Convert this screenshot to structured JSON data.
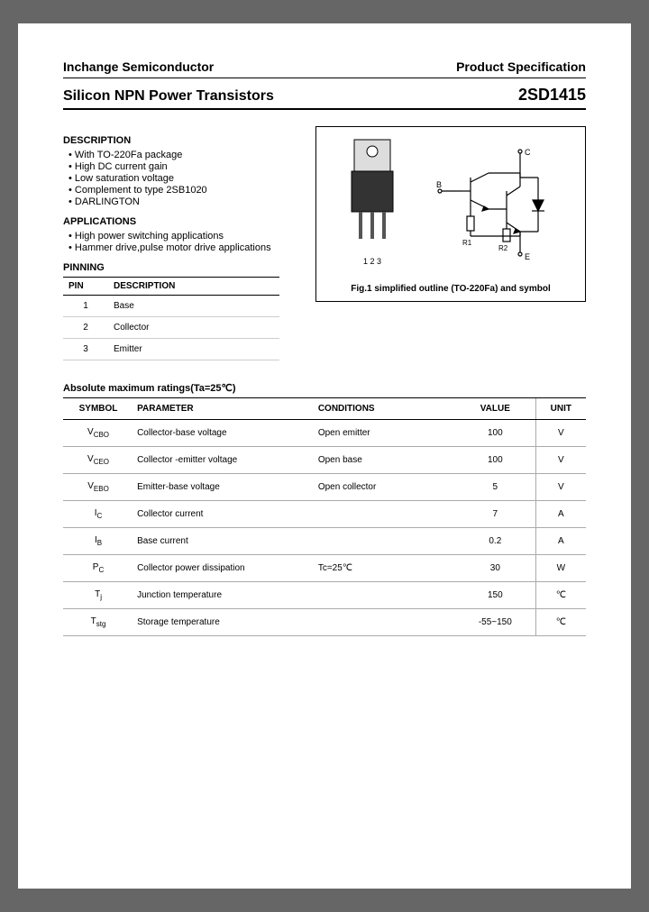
{
  "header": {
    "company": "Inchange Semiconductor",
    "doctype": "Product Specification"
  },
  "title": {
    "left": "Silicon NPN Power Transistors",
    "part": "2SD1415"
  },
  "description": {
    "heading": "DESCRIPTION",
    "items": [
      "With TO-220Fa package",
      "High DC current gain",
      "Low saturation voltage",
      "Complement to type 2SB1020",
      "DARLINGTON"
    ]
  },
  "applications": {
    "heading": "APPLICATIONS",
    "items": [
      "High power switching applications",
      "Hammer drive,pulse motor drive applications"
    ]
  },
  "pinning": {
    "heading": "PINNING",
    "columns": [
      "PIN",
      "DESCRIPTION"
    ],
    "rows": [
      [
        "1",
        "Base"
      ],
      [
        "2",
        "Collector"
      ],
      [
        "3",
        "Emitter"
      ]
    ]
  },
  "figure": {
    "pin_labels": "1 2 3",
    "sym_labels": {
      "B": "B",
      "C": "C",
      "E": "E",
      "R1": "R1",
      "R2": "R2"
    },
    "caption": "Fig.1 simplified outline (TO-220Fa) and symbol"
  },
  "ratings": {
    "heading": "Absolute maximum ratings(Ta=25℃)",
    "columns": [
      "SYMBOL",
      "PARAMETER",
      "CONDITIONS",
      "VALUE",
      "UNIT"
    ],
    "rows": [
      {
        "sym": "V",
        "sub": "CBO",
        "par": "Collector-base voltage",
        "con": "Open emitter",
        "val": "100",
        "uni": "V"
      },
      {
        "sym": "V",
        "sub": "CEO",
        "par": "Collector -emitter voltage",
        "con": "Open base",
        "val": "100",
        "uni": "V"
      },
      {
        "sym": "V",
        "sub": "EBO",
        "par": "Emitter-base voltage",
        "con": "Open collector",
        "val": "5",
        "uni": "V"
      },
      {
        "sym": "I",
        "sub": "C",
        "par": "Collector current",
        "con": "",
        "val": "7",
        "uni": "A"
      },
      {
        "sym": "I",
        "sub": "B",
        "par": "Base current",
        "con": "",
        "val": "0.2",
        "uni": "A"
      },
      {
        "sym": "P",
        "sub": "C",
        "par": "Collector power dissipation",
        "con": "Tc=25℃",
        "val": "30",
        "uni": "W"
      },
      {
        "sym": "T",
        "sub": "j",
        "par": "Junction temperature",
        "con": "",
        "val": "150",
        "uni": "℃"
      },
      {
        "sym": "T",
        "sub": "stg",
        "par": "Storage temperature",
        "con": "",
        "val": "-55~150",
        "uni": "℃"
      }
    ]
  },
  "colors": {
    "text": "#000000",
    "rule": "#000000",
    "row_border": "#aaaaaa",
    "page_bg": "#ffffff",
    "outer_bg": "#666666"
  }
}
